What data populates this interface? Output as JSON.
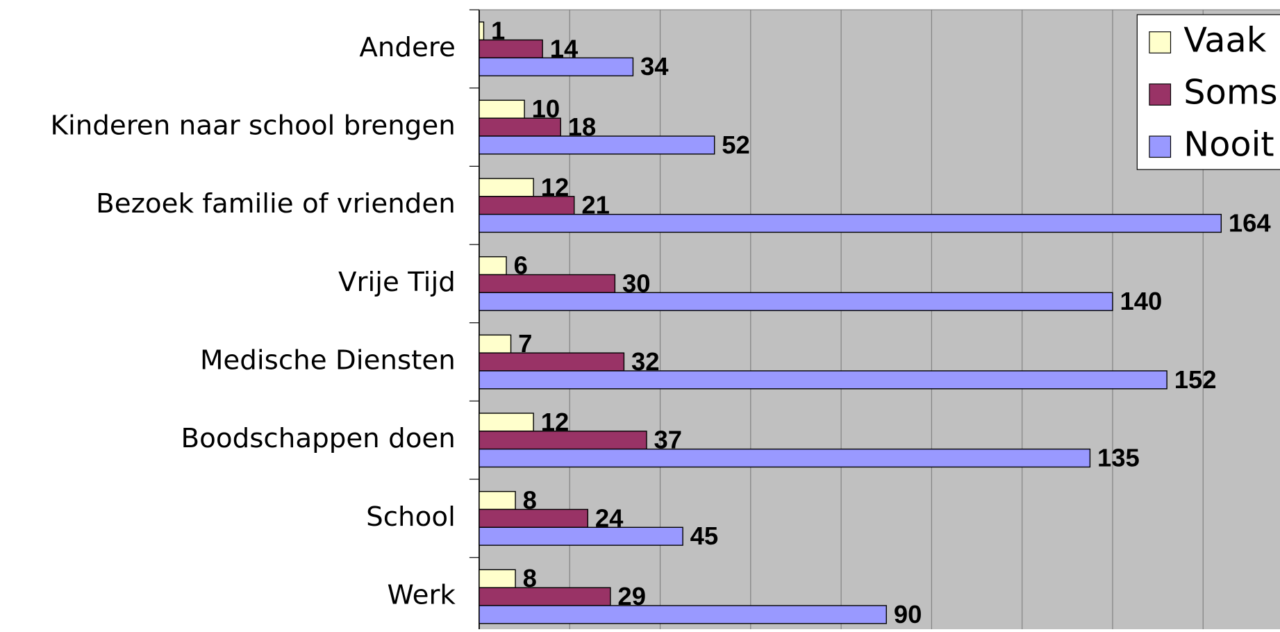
{
  "chart_data": {
    "type": "bar",
    "orientation": "horizontal",
    "categories": [
      "Andere",
      "Kinderen naar school brengen",
      "Bezoek familie of vrienden",
      "Vrije Tijd",
      "Medische Diensten",
      "Boodschappen doen",
      "School",
      "Werk"
    ],
    "series": [
      {
        "name": "Vaak",
        "color": "#ffffcc",
        "values": [
          1,
          10,
          12,
          6,
          7,
          12,
          8,
          8
        ]
      },
      {
        "name": "Soms",
        "color": "#993366",
        "values": [
          14,
          18,
          21,
          30,
          32,
          37,
          24,
          29
        ]
      },
      {
        "name": "Nooit",
        "color": "#9999ff",
        "values": [
          34,
          52,
          164,
          140,
          152,
          135,
          45,
          90
        ]
      }
    ],
    "xlim": [
      0,
      177
    ],
    "xticks": [
      0,
      20,
      40,
      60,
      80,
      100,
      120,
      140,
      160
    ],
    "grid": true,
    "legend": "top-right"
  }
}
